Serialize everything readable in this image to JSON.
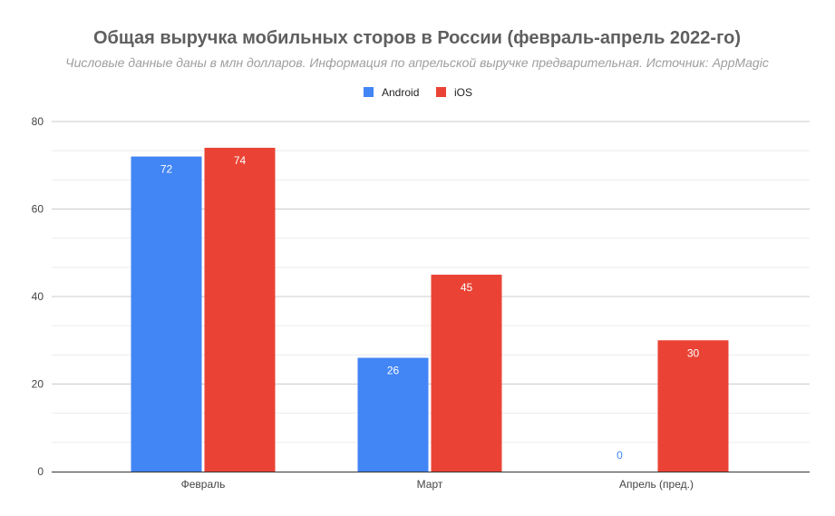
{
  "chart_data": {
    "type": "bar",
    "title": "Общая выручка мобильных сторов в России (февраль-апрель 2022-го)",
    "subtitle": "Числовые данные даны в млн долларов. Информация по апрельской выручке предварительная. Источник: AppMagic",
    "xlabel": "",
    "ylabel": "",
    "categories": [
      "Февраль",
      "Март",
      "Апрель (пред.)"
    ],
    "series": [
      {
        "name": "Android",
        "values": [
          72,
          26,
          0
        ],
        "color": "#4285f4"
      },
      {
        "name": "iOS",
        "values": [
          74,
          45,
          30
        ],
        "color": "#ea4335"
      }
    ],
    "ylim": [
      0,
      80
    ],
    "yticks": [
      0,
      20,
      40,
      60,
      80
    ],
    "minor_gridlines": true,
    "legend_position": "top-center",
    "data_labels": true
  }
}
